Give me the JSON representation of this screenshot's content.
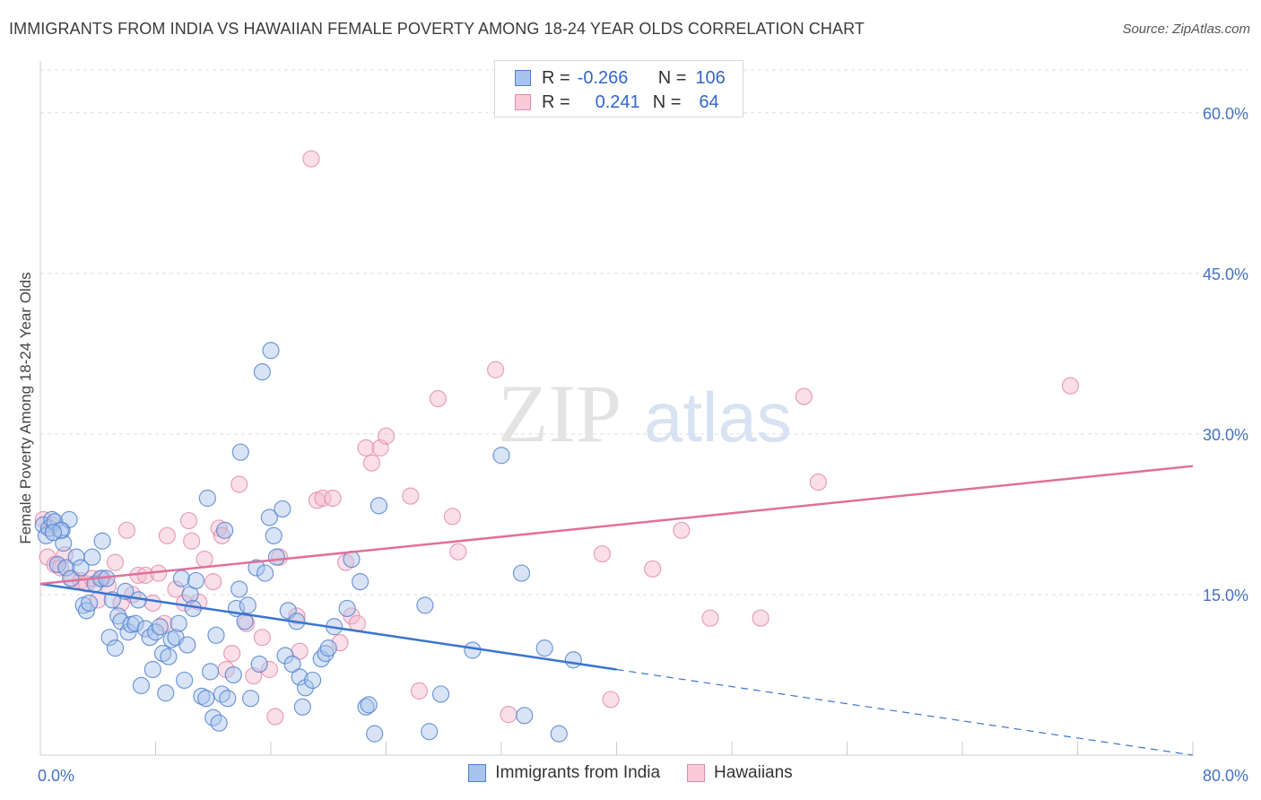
{
  "header": {
    "title": "IMMIGRANTS FROM INDIA VS HAWAIIAN FEMALE POVERTY AMONG 18-24 YEAR OLDS CORRELATION CHART",
    "source": "Source: ZipAtlas.com"
  },
  "watermark": {
    "zip": "ZIP",
    "atlas": "atlas"
  },
  "legend": {
    "rows": [
      {
        "r_label": "R =",
        "r_value": "-0.266",
        "n_label": "N =",
        "n_value": "106",
        "color": "#4472c4"
      },
      {
        "r_label": "R =",
        "r_value": "0.241",
        "n_label": "N =",
        "n_value": "64",
        "color": "#e07aa0"
      }
    ]
  },
  "colors": {
    "india_fill": "#a8c4ec",
    "india_stroke": "#4f7fcf",
    "india_line": "#3a75d0",
    "hawaiian_fill": "#f5b8cc",
    "hawaiian_stroke": "#e38aa9",
    "hawaiian_line": "#e0709a",
    "grid": "#dddddd",
    "tick_text": "#4472c4"
  },
  "chart_data": {
    "type": "scatter",
    "title": "IMMIGRANTS FROM INDIA VS HAWAIIAN FEMALE POVERTY AMONG 18-24 YEAR OLDS CORRELATION CHART",
    "xlabel": "",
    "ylabel": "Female Poverty Among 18-24 Year Olds",
    "xlim": [
      0,
      80
    ],
    "ylim": [
      0,
      64
    ],
    "x_tick_labels": [
      "0.0%",
      "80.0%"
    ],
    "y_ticks": [
      15,
      30,
      45,
      60
    ],
    "y_tick_labels": [
      "15.0%",
      "30.0%",
      "45.0%",
      "60.0%"
    ],
    "grid": "horizontal dashed",
    "legend_position": "top-center",
    "series": [
      {
        "name": "Immigrants from India",
        "r": -0.266,
        "n": 106,
        "trend": {
          "x": [
            0,
            40
          ],
          "y": [
            16.0,
            8.0
          ],
          "dashed_extension": {
            "x": [
              40,
              80
            ],
            "y": [
              8.0,
              0.0
            ]
          }
        },
        "points": [
          [
            0.2,
            21.5
          ],
          [
            0.4,
            20.5
          ],
          [
            0.6,
            21.2
          ],
          [
            0.8,
            22.0
          ],
          [
            1.0,
            21.8
          ],
          [
            1.2,
            17.8
          ],
          [
            1.5,
            21.0
          ],
          [
            1.6,
            19.8
          ],
          [
            1.8,
            17.5
          ],
          [
            2.0,
            22.0
          ],
          [
            2.1,
            16.5
          ],
          [
            2.5,
            18.5
          ],
          [
            2.8,
            17.5
          ],
          [
            3.0,
            14.0
          ],
          [
            3.2,
            13.5
          ],
          [
            3.4,
            14.2
          ],
          [
            3.6,
            18.5
          ],
          [
            3.8,
            16.0
          ],
          [
            4.2,
            16.5
          ],
          [
            4.3,
            20.0
          ],
          [
            4.6,
            16.5
          ],
          [
            4.8,
            11.0
          ],
          [
            5.0,
            14.5
          ],
          [
            5.2,
            10.0
          ],
          [
            5.4,
            13.0
          ],
          [
            5.6,
            12.5
          ],
          [
            5.9,
            15.3
          ],
          [
            6.1,
            11.5
          ],
          [
            6.3,
            12.2
          ],
          [
            6.6,
            12.3
          ],
          [
            6.8,
            14.5
          ],
          [
            7.0,
            6.5
          ],
          [
            7.3,
            11.8
          ],
          [
            7.6,
            11.0
          ],
          [
            7.8,
            8.0
          ],
          [
            8.0,
            11.5
          ],
          [
            8.3,
            12.0
          ],
          [
            8.5,
            9.5
          ],
          [
            8.7,
            5.8
          ],
          [
            8.9,
            9.2
          ],
          [
            9.1,
            10.8
          ],
          [
            9.4,
            11.0
          ],
          [
            9.6,
            12.3
          ],
          [
            9.8,
            16.5
          ],
          [
            10.0,
            7.0
          ],
          [
            10.2,
            10.3
          ],
          [
            10.4,
            15.0
          ],
          [
            10.6,
            13.7
          ],
          [
            10.8,
            16.3
          ],
          [
            11.2,
            5.5
          ],
          [
            11.5,
            5.3
          ],
          [
            11.6,
            24.0
          ],
          [
            11.8,
            7.8
          ],
          [
            12.0,
            3.5
          ],
          [
            12.2,
            11.2
          ],
          [
            12.4,
            3.0
          ],
          [
            12.6,
            5.7
          ],
          [
            12.8,
            21.0
          ],
          [
            13.0,
            5.3
          ],
          [
            13.4,
            7.5
          ],
          [
            13.6,
            13.7
          ],
          [
            13.8,
            15.5
          ],
          [
            13.9,
            28.3
          ],
          [
            14.2,
            12.5
          ],
          [
            14.4,
            14.0
          ],
          [
            14.6,
            5.3
          ],
          [
            15.0,
            17.5
          ],
          [
            15.2,
            8.5
          ],
          [
            15.4,
            35.8
          ],
          [
            15.6,
            17.0
          ],
          [
            15.9,
            22.2
          ],
          [
            16.0,
            37.8
          ],
          [
            16.2,
            20.5
          ],
          [
            16.4,
            18.5
          ],
          [
            16.8,
            23.0
          ],
          [
            17.0,
            9.3
          ],
          [
            17.2,
            13.5
          ],
          [
            17.5,
            8.5
          ],
          [
            17.8,
            12.5
          ],
          [
            18.0,
            7.3
          ],
          [
            18.2,
            4.5
          ],
          [
            18.4,
            6.3
          ],
          [
            18.9,
            7.0
          ],
          [
            19.5,
            9.0
          ],
          [
            19.8,
            9.5
          ],
          [
            20.0,
            10.0
          ],
          [
            20.4,
            12.0
          ],
          [
            21.3,
            13.7
          ],
          [
            21.6,
            18.3
          ],
          [
            22.2,
            16.2
          ],
          [
            22.6,
            4.5
          ],
          [
            22.8,
            4.7
          ],
          [
            23.2,
            2.0
          ],
          [
            23.5,
            23.3
          ],
          [
            26.7,
            14.0
          ],
          [
            27.0,
            2.2
          ],
          [
            27.8,
            5.7
          ],
          [
            30.0,
            9.8
          ],
          [
            32.0,
            28.0
          ],
          [
            33.4,
            17.0
          ],
          [
            33.6,
            3.7
          ],
          [
            35.0,
            10.0
          ],
          [
            36.0,
            2.0
          ],
          [
            37.0,
            8.9
          ],
          [
            1.4,
            21.0
          ],
          [
            0.9,
            20.8
          ]
        ]
      },
      {
        "name": "Hawaiians",
        "r": 0.241,
        "n": 64,
        "trend": {
          "x": [
            0,
            80
          ],
          "y": [
            16.0,
            27.0
          ]
        },
        "points": [
          [
            0.2,
            22.0
          ],
          [
            0.5,
            18.5
          ],
          [
            0.8,
            21.5
          ],
          [
            1.0,
            17.8
          ],
          [
            1.4,
            17.5
          ],
          [
            1.7,
            18.7
          ],
          [
            2.2,
            16.5
          ],
          [
            2.8,
            16.3
          ],
          [
            3.2,
            16.0
          ],
          [
            3.6,
            16.5
          ],
          [
            4.0,
            14.5
          ],
          [
            4.3,
            16.5
          ],
          [
            4.7,
            15.8
          ],
          [
            5.2,
            18.0
          ],
          [
            5.6,
            14.2
          ],
          [
            6.0,
            21.0
          ],
          [
            6.4,
            15.0
          ],
          [
            6.8,
            16.8
          ],
          [
            7.3,
            16.8
          ],
          [
            7.8,
            14.2
          ],
          [
            8.2,
            17.0
          ],
          [
            8.6,
            12.3
          ],
          [
            8.8,
            20.5
          ],
          [
            9.4,
            15.5
          ],
          [
            10.0,
            14.2
          ],
          [
            10.3,
            21.9
          ],
          [
            10.5,
            20.0
          ],
          [
            11.0,
            14.3
          ],
          [
            11.4,
            18.3
          ],
          [
            12.0,
            16.2
          ],
          [
            12.4,
            21.2
          ],
          [
            12.6,
            20.5
          ],
          [
            12.9,
            8.0
          ],
          [
            13.3,
            9.5
          ],
          [
            13.8,
            25.3
          ],
          [
            14.3,
            12.3
          ],
          [
            14.8,
            7.4
          ],
          [
            15.4,
            11.0
          ],
          [
            15.9,
            8.0
          ],
          [
            16.3,
            3.6
          ],
          [
            16.6,
            18.5
          ],
          [
            17.8,
            13.0
          ],
          [
            18.0,
            9.7
          ],
          [
            18.8,
            55.7
          ],
          [
            19.2,
            23.8
          ],
          [
            19.6,
            24.0
          ],
          [
            20.3,
            24.0
          ],
          [
            20.8,
            10.5
          ],
          [
            21.2,
            18.0
          ],
          [
            21.6,
            13.0
          ],
          [
            22.0,
            12.3
          ],
          [
            22.6,
            28.7
          ],
          [
            23.0,
            27.3
          ],
          [
            23.6,
            28.7
          ],
          [
            24.0,
            29.8
          ],
          [
            25.7,
            24.2
          ],
          [
            26.3,
            6.0
          ],
          [
            27.6,
            33.3
          ],
          [
            28.6,
            22.3
          ],
          [
            29.0,
            19.0
          ],
          [
            31.6,
            36.0
          ],
          [
            32.5,
            3.8
          ],
          [
            39.0,
            18.8
          ],
          [
            39.6,
            5.2
          ]
        ]
      },
      {
        "name": "Hawaiians (far)",
        "points": [
          [
            42.5,
            17.4
          ],
          [
            44.5,
            21.0
          ],
          [
            46.5,
            12.8
          ],
          [
            50.0,
            12.8
          ],
          [
            53.0,
            33.5
          ],
          [
            54.0,
            25.5
          ],
          [
            71.5,
            34.5
          ]
        ]
      }
    ]
  },
  "bottom_legend": {
    "items": [
      {
        "label": "Immigrants from India"
      },
      {
        "label": "Hawaiians"
      }
    ]
  }
}
